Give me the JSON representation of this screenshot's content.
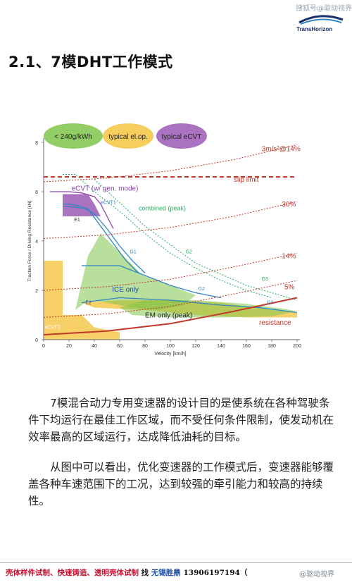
{
  "header": {
    "watermark": "搜狐号@驱动视界",
    "logo_text": "TransHorizon"
  },
  "title": "2.1、7模DHT工作模式",
  "chart_data": {
    "type": "line",
    "xlabel": "Velocity [km/h]",
    "ylabel": "Traction Force / Driving Resistance [kN]",
    "xlim": [
      0,
      200
    ],
    "ylim": [
      0,
      8
    ],
    "xticks": [
      0,
      20,
      40,
      60,
      80,
      100,
      120,
      140,
      160,
      180,
      200
    ],
    "yticks": [
      0,
      2,
      4,
      6,
      8
    ],
    "legend": [
      {
        "label": "< 240g/kWh",
        "color": "#7fc44a"
      },
      {
        "label": "typical el.op.",
        "color": "#f5c542"
      },
      {
        "label": "typical eCVT",
        "color": "#9b59b6"
      }
    ],
    "labels": {
      "slip_limit": "slip limit",
      "ecvt_gen": "eCVT (w/ gen. mode)",
      "ecvt1": "eCVT1",
      "combined": "combined (peak)",
      "e1": "E1",
      "e2": "E2",
      "g1_left": "G1",
      "g1": "G1",
      "g2": "G2",
      "g2b": "G2",
      "g3": "G3",
      "g3b": "G3",
      "ice_only": "ICE only",
      "em_only": "EM only (peak)",
      "resistance": "resistance",
      "ecvt2": "eCVT2",
      "acc_14": "3m/s²@14%",
      "grade_30": "30%",
      "grade_14": "14%",
      "grade_5": "5%"
    },
    "series": [
      {
        "name": "slip limit",
        "color": "#c0392b",
        "style": "dashed",
        "x": [
          0,
          200
        ],
        "y": [
          6.6,
          6.6
        ]
      },
      {
        "name": "eCVT (w/ gen. mode)",
        "color": "#8e44ad",
        "x": [
          5,
          20,
          30,
          40,
          45,
          50,
          55
        ],
        "y": [
          6.0,
          6.0,
          5.95,
          5.8,
          5.5,
          5.0,
          4.5
        ]
      },
      {
        "name": "eCVT1",
        "color": "#2e86c1",
        "x": [
          15,
          20,
          30,
          40,
          50,
          60,
          70,
          80
        ],
        "y": [
          5.5,
          5.5,
          5.4,
          5.1,
          4.5,
          3.8,
          3.2,
          2.7
        ]
      },
      {
        "name": "E1",
        "color": "#2e86c1",
        "x": [
          15,
          20,
          35,
          45,
          55,
          65,
          75
        ],
        "y": [
          5.4,
          5.4,
          5.3,
          4.6,
          3.9,
          3.2,
          2.7
        ]
      },
      {
        "name": "G2",
        "color": "#2e86c1",
        "x": [
          30,
          60,
          80,
          100,
          120,
          140
        ],
        "y": [
          3.0,
          3.0,
          2.6,
          2.2,
          1.9,
          1.7
        ]
      },
      {
        "name": "E2",
        "color": "#2e86c1",
        "x": [
          30,
          60,
          100,
          140,
          170,
          200
        ],
        "y": [
          1.5,
          1.7,
          1.6,
          1.4,
          1.3,
          1.1
        ]
      },
      {
        "name": "combined (peak)",
        "color": "#27ae60",
        "style": "dotted",
        "x": [
          15,
          25,
          40,
          60,
          80,
          100,
          120,
          140,
          160,
          180
        ],
        "y": [
          6.7,
          6.7,
          6.0,
          5.2,
          4.3,
          3.5,
          2.9,
          2.4,
          2.0,
          1.7
        ]
      },
      {
        "name": "G2 dotted",
        "color": "#27ae60",
        "style": "dotted",
        "x": [
          40,
          80,
          120,
          160,
          200
        ],
        "y": [
          6.5,
          4.6,
          3.1,
          2.2,
          1.6
        ]
      },
      {
        "name": "resistance",
        "color": "#c0392b",
        "x": [
          0,
          50,
          100,
          150,
          200
        ],
        "y": [
          0.2,
          0.35,
          0.65,
          1.15,
          1.7
        ]
      },
      {
        "name": "3m/s²@14%",
        "color": "#c0392b",
        "style": "dotted",
        "x": [
          0,
          50,
          100,
          150,
          200
        ],
        "y": [
          6.4,
          6.55,
          6.85,
          7.3,
          7.9
        ]
      },
      {
        "name": "30%",
        "color": "#c0392b",
        "style": "dotted",
        "x": [
          0,
          50,
          100,
          150,
          200
        ],
        "y": [
          4.1,
          4.25,
          4.55,
          5.0,
          5.6
        ]
      },
      {
        "name": "14%",
        "color": "#c0392b",
        "style": "dotted",
        "x": [
          0,
          50,
          100,
          150,
          200
        ],
        "y": [
          2.0,
          2.15,
          2.45,
          2.95,
          3.5
        ]
      },
      {
        "name": "5%",
        "color": "#c0392b",
        "style": "dotted",
        "x": [
          0,
          50,
          100,
          150,
          200
        ],
        "y": [
          0.9,
          1.05,
          1.35,
          1.85,
          2.4
        ]
      }
    ]
  },
  "paragraphs": {
    "p1": "7模混合动力专用变速器的设计目的是使系统在各种驾驶条件下均运行在最佳工作区域，而不受任何条件限制，使发动机在效率最高的区域运行，达成降低油耗的目标。",
    "p2": "从图中可以看出，优化变速器的工作模式后，变速器能够覆盖各种车速范围下的工况，达到较强的牵引能力和较高的持续性。"
  },
  "footer": {
    "ad_red": "壳体样件试制、快速铸造、透明壳体试制",
    "ad_find": "找",
    "ad_name": "无锡胜鼎",
    "ad_phone": "13906197194（",
    "watermark": "@驱动视界"
  }
}
